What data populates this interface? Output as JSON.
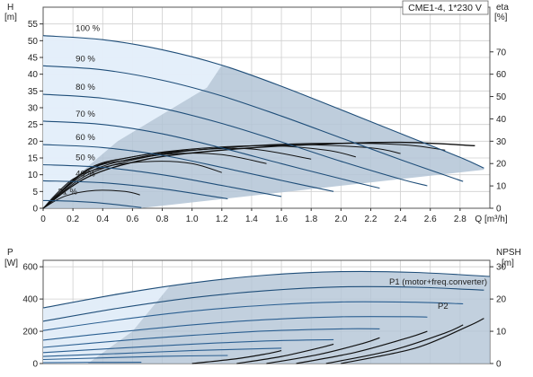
{
  "model_label": "CME1-4, 1*230 V",
  "colors": {
    "head_curve": "#1f4e79",
    "eff_curve": "#111111",
    "power_curve": "#1f4e79",
    "npsh_curve": "#111111",
    "region_fill": "#b3c4d6",
    "region_light": "#e6f0fb",
    "grid": "#cfcfcf"
  },
  "chart_data": [
    {
      "type": "line",
      "name": "head-efficiency",
      "title": "",
      "xlabel": "Q [m³/h]",
      "ylabel": "H [m]",
      "ylabel_right": "eta [%]",
      "y_left_title": "H",
      "y_left_unit": "[m]",
      "y_right_title": "eta",
      "y_right_unit": "[%]",
      "x_unit_label": "Q [m³/h]",
      "xlim": [
        0,
        3.0
      ],
      "ylim": [
        0,
        60
      ],
      "y2lim": [
        0,
        90
      ],
      "x_ticks": [
        0,
        0.2,
        0.4,
        0.6,
        0.8,
        1.0,
        1.2,
        1.4,
        1.6,
        1.8,
        2.0,
        2.2,
        2.4,
        2.6,
        2.8
      ],
      "x_tick_labels": [
        "0",
        "0.2",
        "0.4",
        "0.6",
        "0.8",
        "1.0",
        "1.2",
        "1.4",
        "1.6",
        "1.8",
        "2.0",
        "2.2",
        "2.4",
        "2.6",
        "2.8"
      ],
      "y_ticks": [
        0,
        5,
        10,
        15,
        20,
        25,
        30,
        35,
        40,
        45,
        50,
        55
      ],
      "y2_ticks": [
        0,
        10,
        20,
        30,
        40,
        50,
        60,
        70
      ],
      "grid": true,
      "series": [
        {
          "name": "100 %",
          "x": [
            0,
            0.4,
            0.8,
            1.2,
            1.6,
            2.0,
            2.4,
            2.8,
            2.96
          ],
          "values": [
            51.5,
            50.3,
            47.3,
            42.7,
            36.4,
            29.4,
            22.3,
            15.2,
            12.0
          ]
        },
        {
          "name": "90 %",
          "x": [
            0,
            0.4,
            0.8,
            1.2,
            1.6,
            2.0,
            2.4,
            2.82
          ],
          "values": [
            42.5,
            41.3,
            38.2,
            33.5,
            27.5,
            21.0,
            14.5,
            8.0
          ]
        },
        {
          "name": "80 %",
          "x": [
            0,
            0.4,
            0.8,
            1.2,
            1.6,
            2.0,
            2.4,
            2.58
          ],
          "values": [
            34,
            32.8,
            29.8,
            25.3,
            19.8,
            14.0,
            8.7,
            6.7
          ]
        },
        {
          "name": "70 %",
          "x": [
            0,
            0.4,
            0.8,
            1.2,
            1.6,
            2.0,
            2.26
          ],
          "values": [
            26,
            25.0,
            22.2,
            18.0,
            13.3,
            8.8,
            6.0
          ]
        },
        {
          "name": "60 %",
          "x": [
            0,
            0.4,
            0.8,
            1.2,
            1.6,
            1.95
          ],
          "values": [
            19,
            18.1,
            15.8,
            12.2,
            8.3,
            5.0
          ]
        },
        {
          "name": "50 %",
          "x": [
            0,
            0.4,
            0.8,
            1.2,
            1.6
          ],
          "values": [
            13,
            12.2,
            10.0,
            6.8,
            3.5
          ]
        },
        {
          "name": "40 %",
          "x": [
            0,
            0.4,
            0.8,
            1.24
          ],
          "values": [
            8.2,
            7.6,
            5.8,
            2.8
          ]
        },
        {
          "name": "21 %",
          "x": [
            0,
            0.2,
            0.4,
            0.66
          ],
          "values": [
            2.3,
            2.1,
            1.5,
            0.2
          ]
        }
      ],
      "efficiency_curves_eta_pct": [
        {
          "x": [
            0,
            0.3,
            0.7,
            1.2,
            1.8,
            2.4,
            2.9
          ],
          "values": [
            0,
            14,
            22,
            26,
            28.5,
            29.5,
            28
          ]
        },
        {
          "x": [
            0,
            0.3,
            0.7,
            1.2,
            1.8,
            2.4,
            2.7
          ],
          "values": [
            0,
            15,
            23,
            27,
            29,
            28.5,
            26
          ]
        },
        {
          "x": [
            0,
            0.3,
            0.7,
            1.2,
            1.7,
            2.2,
            2.4
          ],
          "values": [
            0,
            16,
            23.5,
            27,
            28.5,
            27,
            24.5
          ]
        },
        {
          "x": [
            0,
            0.3,
            0.6,
            1.0,
            1.5,
            1.9,
            2.1
          ],
          "values": [
            0,
            17,
            23,
            26.5,
            28,
            26,
            23
          ]
        },
        {
          "x": [
            0,
            0.3,
            0.6,
            1.0,
            1.4,
            1.8
          ],
          "values": [
            0,
            17.5,
            23,
            26,
            26.5,
            22
          ]
        },
        {
          "x": [
            0,
            0.3,
            0.6,
            0.9,
            1.2,
            1.5
          ],
          "values": [
            0,
            17,
            22,
            24.5,
            24,
            20
          ]
        },
        {
          "x": [
            0,
            0.2,
            0.45,
            0.75,
            1.0,
            1.2
          ],
          "values": [
            0,
            13,
            19,
            21,
            20,
            16
          ]
        },
        {
          "x": [
            0,
            0.15,
            0.35,
            0.55,
            0.65
          ],
          "values": [
            0,
            5.5,
            8,
            7.5,
            6
          ]
        }
      ]
    },
    {
      "type": "line",
      "name": "power-npsh",
      "title": "",
      "y_left_title": "P",
      "y_left_unit": "[W]",
      "y_right_title": "NPSH",
      "y_right_unit": "[m]",
      "xlim": [
        0,
        3.0
      ],
      "ylim": [
        0,
        640
      ],
      "y2lim": [
        0,
        32
      ],
      "y_ticks": [
        0,
        200,
        400,
        600
      ],
      "y2_ticks": [
        0,
        10,
        20,
        30
      ],
      "grid": true,
      "annotations": [
        "P1 (motor+freq.converter)",
        "P2"
      ],
      "series": [
        {
          "name": "P1 (motor+freq.converter)",
          "x": [
            0,
            0.5,
            1.0,
            1.5,
            2.0,
            2.5,
            3.0
          ],
          "values": [
            345,
            430,
            500,
            548,
            570,
            565,
            540
          ]
        },
        {
          "name": "P2",
          "x": [
            0,
            0.5,
            1.0,
            1.5,
            2.0,
            2.5,
            2.96
          ],
          "values": [
            262,
            342,
            408,
            452,
            475,
            473,
            455
          ]
        },
        {
          "name": "",
          "x": [
            0,
            0.5,
            1.0,
            1.5,
            2.0,
            2.5,
            2.82
          ],
          "values": [
            205,
            270,
            325,
            362,
            382,
            380,
            370
          ]
        },
        {
          "name": "",
          "x": [
            0,
            0.5,
            1.0,
            1.5,
            2.0,
            2.5,
            2.58
          ],
          "values": [
            145,
            195,
            240,
            272,
            290,
            290,
            288
          ]
        },
        {
          "name": "",
          "x": [
            0,
            0.5,
            1.0,
            1.5,
            2.0,
            2.26
          ],
          "values": [
            100,
            140,
            175,
            202,
            215,
            215
          ]
        },
        {
          "name": "",
          "x": [
            0,
            0.5,
            1.0,
            1.5,
            1.95
          ],
          "values": [
            68,
            95,
            120,
            140,
            148
          ]
        },
        {
          "name": "",
          "x": [
            0,
            0.5,
            1.0,
            1.5,
            1.6
          ],
          "values": [
            44,
            62,
            80,
            93,
            95
          ]
        },
        {
          "name": "",
          "x": [
            0,
            0.4,
            0.8,
            1.24
          ],
          "values": [
            25,
            35,
            45,
            50
          ]
        },
        {
          "name": "",
          "x": [
            0,
            0.3,
            0.66
          ],
          "values": [
            5,
            7,
            8
          ]
        }
      ],
      "npsh_curves_m": [
        {
          "x": [
            1.0,
            1.3,
            1.5,
            1.6
          ],
          "values": [
            0,
            1.5,
            3.0,
            4.0
          ]
        },
        {
          "x": [
            1.3,
            1.6,
            1.85,
            1.95
          ],
          "values": [
            0,
            2.2,
            4.8,
            6.0
          ]
        },
        {
          "x": [
            1.5,
            1.85,
            2.15,
            2.26
          ],
          "values": [
            0,
            2.8,
            6.3,
            8.0
          ]
        },
        {
          "x": [
            1.7,
            2.1,
            2.45,
            2.58
          ],
          "values": [
            0,
            3.5,
            8.0,
            10.0
          ]
        },
        {
          "x": [
            1.9,
            2.35,
            2.7,
            2.82
          ],
          "values": [
            0,
            4.2,
            9.5,
            12.0
          ]
        },
        {
          "x": [
            2.0,
            2.5,
            2.85,
            2.96
          ],
          "values": [
            0,
            4.8,
            11.5,
            14.0
          ]
        }
      ]
    }
  ]
}
